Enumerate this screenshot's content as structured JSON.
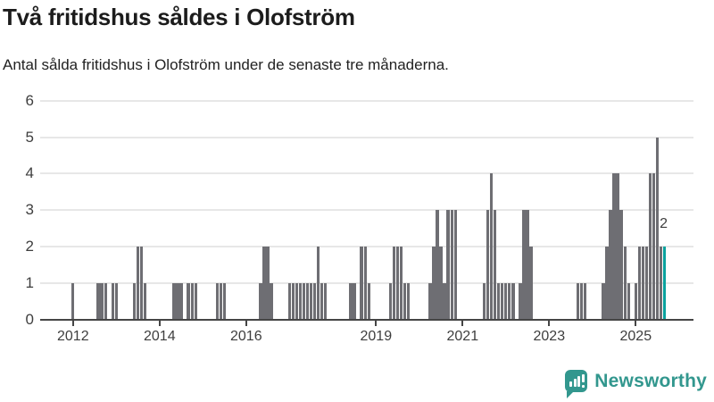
{
  "header": {
    "title": "Två fritidshus såldes i Olofström",
    "subtitle": "Antal sålda fritidshus i Olofström under de senaste tre månaderna."
  },
  "footer": {
    "brand": "Newsworthy"
  },
  "colors": {
    "bar": "#6e6e73",
    "highlight": "#0aa29e",
    "brand_teal": "#32978e",
    "grid": "#e7e7e7",
    "axis": "#454545",
    "axis_text": "#3e3e3e"
  },
  "chart_data": {
    "type": "bar",
    "title": "Två fritidshus såldes i Olofström",
    "subtitle": "Antal sålda fritidshus i Olofström under de senaste tre månaderna.",
    "x_tick_labels": [
      "2012",
      "2014",
      "2016",
      "2019",
      "2021",
      "2023",
      "2025"
    ],
    "y_tick_labels": [
      "0",
      "1",
      "2",
      "3",
      "4",
      "5",
      "6"
    ],
    "ylim": [
      0,
      6
    ],
    "grid": "horizontal",
    "bar_color": "#6e6e73",
    "highlight_color": "#0aa29e",
    "series_monthly": {
      "2012": [
        1,
        0,
        0,
        0,
        0,
        0,
        0,
        1,
        1,
        1,
        0,
        1
      ],
      "2013": [
        1,
        0,
        0,
        0,
        0,
        1,
        2,
        2,
        1,
        0,
        0,
        0
      ],
      "2014": [
        0,
        0,
        0,
        0,
        1,
        1,
        1,
        0,
        1,
        1,
        1,
        0
      ],
      "2015": [
        0,
        0,
        0,
        0,
        1,
        1,
        1,
        0,
        0,
        0,
        0,
        0
      ],
      "2016": [
        0,
        0,
        0,
        0,
        1,
        2,
        2,
        1,
        0,
        0,
        0,
        0
      ],
      "2017": [
        1,
        1,
        1,
        1,
        1,
        1,
        1,
        1,
        2,
        1,
        1,
        0
      ],
      "2018": [
        0,
        0,
        0,
        0,
        0,
        1,
        1,
        0,
        2,
        2,
        1,
        0
      ],
      "2019": [
        0,
        0,
        0,
        0,
        1,
        2,
        2,
        2,
        1,
        1,
        0,
        0
      ],
      "2020": [
        0,
        0,
        0,
        1,
        2,
        3,
        2,
        1,
        3,
        3,
        3,
        0
      ],
      "2021": [
        0,
        0,
        0,
        0,
        0,
        0,
        1,
        3,
        4,
        3,
        1,
        1
      ],
      "2022": [
        1,
        1,
        1,
        0,
        1,
        3,
        3,
        2,
        0,
        0,
        0,
        0
      ],
      "2023": [
        0,
        0,
        0,
        0,
        0,
        0,
        0,
        0,
        1,
        1,
        1,
        0
      ],
      "2024": [
        0,
        0,
        0,
        1,
        2,
        3,
        4,
        4,
        3,
        2,
        1,
        0
      ],
      "2025": [
        1,
        2,
        2,
        2,
        4,
        4,
        5,
        2,
        2
      ]
    },
    "annotation": {
      "label": "2",
      "year": 2025,
      "month": 9,
      "value": 2
    }
  }
}
